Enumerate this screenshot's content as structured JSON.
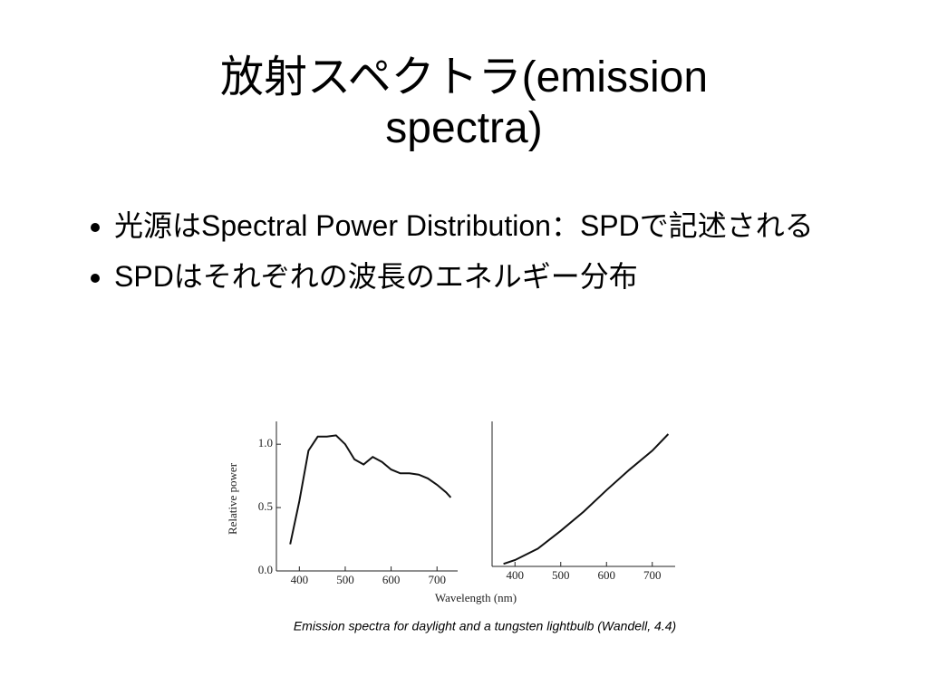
{
  "slide": {
    "title": "放射スペクトラ(emission spectra)",
    "bullets": [
      "光源はSpectral Power Distribution：SPDで記述される",
      "SPDはそれぞれの波長のエネルギー分布"
    ]
  },
  "figure": {
    "xlabel": "Wavelength (nm)",
    "caption": "Emission spectra for daylight and a tungsten lightbulb (Wandell, 4.4)"
  },
  "chart_data": [
    {
      "type": "line",
      "ylabel": "Relative power",
      "color": "#111111",
      "x": [
        380,
        400,
        420,
        440,
        460,
        480,
        500,
        520,
        540,
        560,
        580,
        600,
        620,
        640,
        660,
        680,
        700,
        720,
        730
      ],
      "values": [
        0.21,
        0.55,
        0.95,
        1.06,
        1.06,
        1.07,
        1.0,
        0.88,
        0.84,
        0.9,
        0.86,
        0.8,
        0.77,
        0.77,
        0.76,
        0.73,
        0.68,
        0.62,
        0.58
      ],
      "xlim": [
        350,
        745
      ],
      "ylim": [
        0,
        1.18
      ],
      "xticks": [
        400,
        500,
        600,
        700
      ],
      "yticks": [
        {
          "value": 0,
          "label": "0.0"
        },
        0.5,
        {
          "value": 1,
          "label": "1.0"
        }
      ]
    },
    {
      "type": "line",
      "color": "#111111",
      "x": [
        375,
        400,
        450,
        500,
        550,
        600,
        650,
        700,
        735
      ],
      "values": [
        0.02,
        0.05,
        0.14,
        0.28,
        0.43,
        0.6,
        0.76,
        0.91,
        1.04
      ],
      "xlim": [
        350,
        750
      ],
      "ylim": [
        0,
        1.14
      ],
      "xticks": [
        400,
        500,
        600,
        700
      ]
    }
  ]
}
